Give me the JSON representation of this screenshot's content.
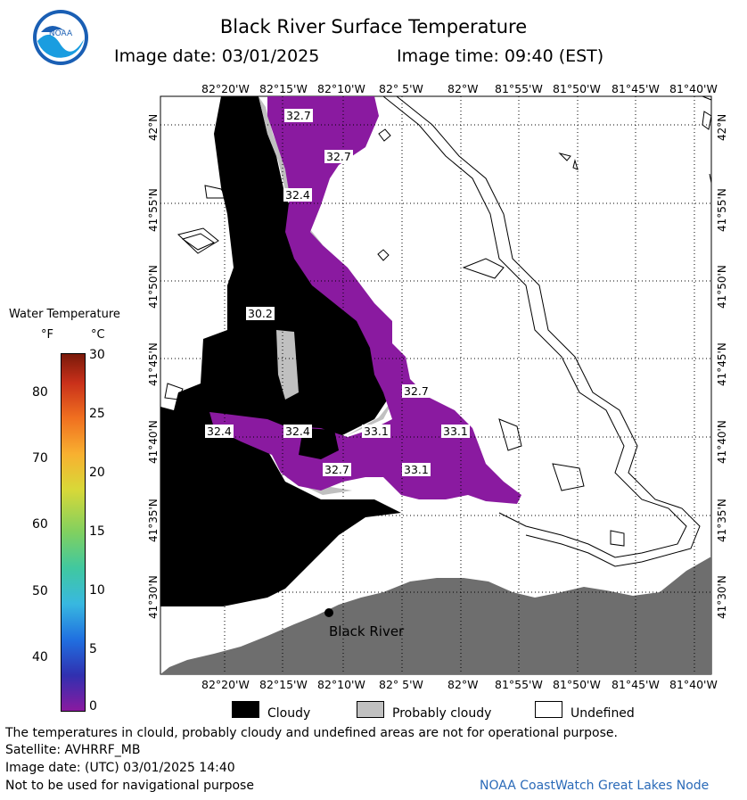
{
  "title": "Black River Surface Temperature",
  "image_date_label": "Image date: 03/01/2025",
  "image_time_label": "Image time: 09:40 (EST)",
  "logo_text": "NOAA",
  "longitude_labels": [
    "82°20'W",
    "82°15'W",
    "82°10'W",
    "82° 5'W",
    "82°W",
    "81°55'W",
    "81°50'W",
    "81°45'W",
    "81°40'W"
  ],
  "latitude_labels": [
    "42°N",
    "41°55'N",
    "41°50'N",
    "41°45'N",
    "41°40'N",
    "41°35'N",
    "41°30'N"
  ],
  "temperature_labels": [
    "32.7",
    "32.7",
    "32.4",
    "30.2",
    "32.7",
    "32.4",
    "32.4",
    "33.1",
    "33.1",
    "32.7",
    "33.1"
  ],
  "place_label": "Black River",
  "colorbar": {
    "title": "Water Temperature",
    "unit_f": "°F",
    "unit_c": "°C",
    "f_ticks": [
      "80",
      "70",
      "60",
      "50",
      "40"
    ],
    "c_ticks": [
      "30",
      "25",
      "20",
      "15",
      "10",
      "5",
      "0"
    ]
  },
  "legend": {
    "cloudy": "Cloudy",
    "probably_cloudy": "Probably cloudy",
    "undefined": "Undefined"
  },
  "footer": {
    "disclaimer": "The temperatures in clould, probably cloudy and undefined areas are not for operational purpose.",
    "satellite": "Satellite: AVHRRF_MB",
    "utc_date": "Image date: (UTC) 03/01/2025  14:40",
    "nav_warning": "Not to be used for navigational purpose",
    "credit": "NOAA CoastWatch Great Lakes Node"
  },
  "colors": {
    "cloudy": "#000000",
    "probably_cloudy": "#c0c0c0",
    "land": "#6e6e6e",
    "water_temp_purple": "#8a1aa0",
    "credit_text": "#2a6ab8"
  }
}
